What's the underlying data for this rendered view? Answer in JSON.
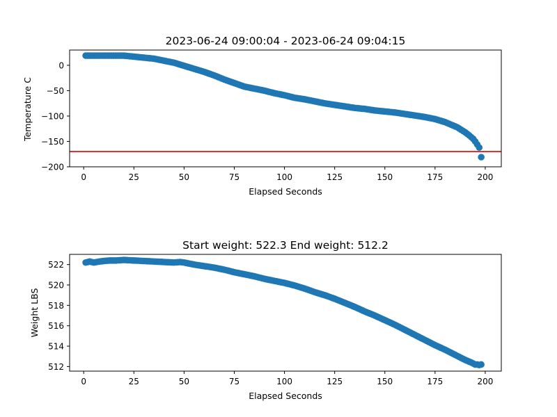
{
  "chart_data": [
    {
      "type": "scatter",
      "title": "2023-06-24 09:00:04 - 2023-06-24 09:04:15",
      "xlabel": "Elapsed Seconds",
      "ylabel": "Temperature C",
      "xlim": [
        -7,
        208
      ],
      "ylim": [
        -200,
        30
      ],
      "xticks": [
        0,
        25,
        50,
        75,
        100,
        125,
        150,
        175,
        200
      ],
      "yticks": [
        -200,
        -150,
        -100,
        -50,
        0
      ],
      "xtick_labels": [
        "0",
        "25",
        "50",
        "75",
        "100",
        "125",
        "150",
        "175",
        "200"
      ],
      "ytick_labels": [
        "−200",
        "−150",
        "−100",
        "−50",
        "0"
      ],
      "grid": false,
      "marker_color": "#1f77b4",
      "reference_line": {
        "y": -170,
        "color": "#e00000"
      },
      "series": [
        {
          "x": [
            1,
            5,
            10,
            15,
            20,
            25,
            30,
            35,
            40,
            45,
            50,
            55,
            60,
            65,
            70,
            75,
            80,
            85,
            90,
            95,
            100,
            105,
            110,
            115,
            120,
            125,
            130,
            135,
            140,
            145,
            150,
            155,
            160,
            165,
            170,
            175,
            180,
            183,
            186,
            188,
            190,
            192,
            194,
            195,
            196,
            197,
            198
          ],
          "y": [
            19,
            19,
            19,
            19,
            19,
            17,
            15,
            13,
            9,
            5,
            -1,
            -7,
            -13,
            -20,
            -28,
            -35,
            -42,
            -46,
            -50,
            -55,
            -59,
            -64,
            -67,
            -71,
            -75,
            -78,
            -81,
            -84,
            -86,
            -89,
            -91,
            -93,
            -96,
            -99,
            -102,
            -106,
            -112,
            -117,
            -122,
            -127,
            -132,
            -138,
            -145,
            -150,
            -156,
            -162,
            -181
          ]
        }
      ]
    },
    {
      "type": "scatter",
      "title": "Start weight: 522.3 End weight: 512.2",
      "xlabel": "Elapsed Seconds",
      "ylabel": "Weight LBS",
      "xlim": [
        -7,
        208
      ],
      "ylim": [
        511.55,
        523.0
      ],
      "xticks": [
        0,
        25,
        50,
        75,
        100,
        125,
        150,
        175,
        200
      ],
      "yticks": [
        512,
        514,
        516,
        518,
        520,
        522
      ],
      "xtick_labels": [
        "0",
        "25",
        "50",
        "75",
        "100",
        "125",
        "150",
        "175",
        "200"
      ],
      "ytick_labels": [
        "512",
        "514",
        "516",
        "518",
        "520",
        "522"
      ],
      "grid": false,
      "marker_color": "#1f77b4",
      "series": [
        {
          "x": [
            1,
            3,
            5,
            8,
            10,
            13,
            16,
            20,
            25,
            30,
            35,
            40,
            45,
            48,
            50,
            55,
            60,
            65,
            70,
            75,
            80,
            85,
            90,
            95,
            100,
            105,
            110,
            115,
            120,
            125,
            130,
            135,
            140,
            145,
            150,
            155,
            160,
            165,
            170,
            175,
            180,
            185,
            190,
            193,
            195,
            196,
            197,
            198
          ],
          "y": [
            522.2,
            522.3,
            522.2,
            522.3,
            522.35,
            522.4,
            522.4,
            522.45,
            522.4,
            522.35,
            522.3,
            522.25,
            522.2,
            522.25,
            522.2,
            522.0,
            521.85,
            521.7,
            521.5,
            521.25,
            521.05,
            520.85,
            520.6,
            520.4,
            520.2,
            519.95,
            519.65,
            519.3,
            519.0,
            518.65,
            518.25,
            517.85,
            517.4,
            517.0,
            516.55,
            516.1,
            515.6,
            515.1,
            514.6,
            514.1,
            513.65,
            513.15,
            512.65,
            512.4,
            512.2,
            512.2,
            512.15,
            512.2
          ]
        }
      ]
    }
  ]
}
